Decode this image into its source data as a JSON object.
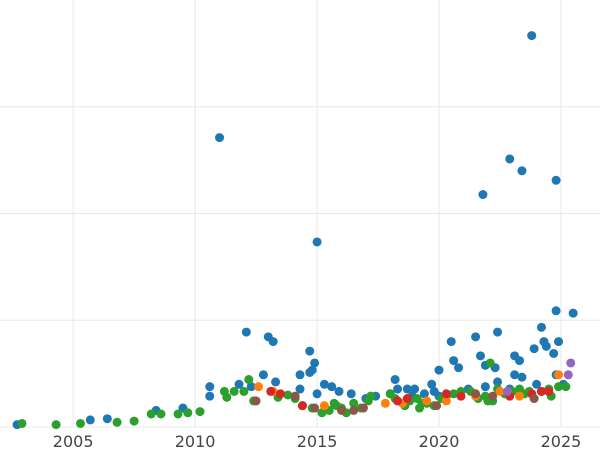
{
  "chart_data": {
    "type": "scatter",
    "title": "",
    "xlabel": "",
    "ylabel": "",
    "xlim": [
      2002,
      2026.6
    ],
    "ylim": [
      0,
      180
    ],
    "x_ticks": [
      2005,
      2010,
      2015,
      2020,
      2025
    ],
    "x_tick_labels": [
      "2005",
      "2010",
      "2015",
      "2020",
      "2025"
    ],
    "y_gridlines": [
      0,
      45,
      90,
      135
    ],
    "grid": true,
    "legend": "none",
    "series": [
      {
        "color": "#1f77b4",
        "points": [
          [
            2002.7,
            1
          ],
          [
            2005.7,
            3
          ],
          [
            2006.4,
            3.5
          ],
          [
            2008.4,
            7
          ],
          [
            2009.5,
            8
          ],
          [
            2010.6,
            13
          ],
          [
            2010.6,
            17
          ],
          [
            2011,
            122
          ],
          [
            2011.8,
            18
          ],
          [
            2012.1,
            40
          ],
          [
            2012.3,
            17
          ],
          [
            2012.8,
            22
          ],
          [
            2013,
            38
          ],
          [
            2013.2,
            36
          ],
          [
            2013.3,
            19
          ],
          [
            2014.3,
            16
          ],
          [
            2014.3,
            22
          ],
          [
            2014.7,
            32
          ],
          [
            2014.7,
            23
          ],
          [
            2014.8,
            24
          ],
          [
            2014.9,
            27
          ],
          [
            2015,
            78
          ],
          [
            2015,
            14
          ],
          [
            2015.3,
            18
          ],
          [
            2015.6,
            17
          ],
          [
            2015.9,
            15
          ],
          [
            2016.4,
            14
          ],
          [
            2017,
            12
          ],
          [
            2017.4,
            13
          ],
          [
            2018,
            14
          ],
          [
            2018.2,
            20
          ],
          [
            2018.3,
            16
          ],
          [
            2018.7,
            16
          ],
          [
            2018.9,
            13
          ],
          [
            2019,
            16
          ],
          [
            2019.4,
            14
          ],
          [
            2019.7,
            18
          ],
          [
            2019.8,
            15
          ],
          [
            2020,
            24
          ],
          [
            2020,
            13
          ],
          [
            2020.5,
            36
          ],
          [
            2020.6,
            28
          ],
          [
            2020.8,
            25
          ],
          [
            2021.2,
            16
          ],
          [
            2021.5,
            38
          ],
          [
            2021.7,
            30
          ],
          [
            2021.8,
            98
          ],
          [
            2021.9,
            26
          ],
          [
            2021.9,
            17
          ],
          [
            2022.3,
            25
          ],
          [
            2022.4,
            19
          ],
          [
            2022.4,
            40
          ],
          [
            2022.9,
            113
          ],
          [
            2022.9,
            16
          ],
          [
            2023.1,
            22
          ],
          [
            2023.1,
            30
          ],
          [
            2023.3,
            28
          ],
          [
            2023.4,
            108
          ],
          [
            2023.4,
            21
          ],
          [
            2023.9,
            33
          ],
          [
            2023.8,
            165
          ],
          [
            2024,
            18
          ],
          [
            2024.2,
            42
          ],
          [
            2024.3,
            36
          ],
          [
            2024.4,
            34
          ],
          [
            2024.7,
            31
          ],
          [
            2024.8,
            49
          ],
          [
            2024.8,
            22
          ],
          [
            2024.9,
            36
          ],
          [
            2024.8,
            104
          ],
          [
            2025.1,
            18
          ],
          [
            2025.5,
            48
          ]
        ]
      },
      {
        "color": "#2ca02c",
        "points": [
          [
            2002.9,
            1.5
          ],
          [
            2004.3,
            1
          ],
          [
            2005.3,
            1.5
          ],
          [
            2006.8,
            2
          ],
          [
            2007.5,
            2.5
          ],
          [
            2008.2,
            5.5
          ],
          [
            2008.6,
            5.5
          ],
          [
            2009.3,
            5.5
          ],
          [
            2009.7,
            6
          ],
          [
            2010.2,
            6.5
          ],
          [
            2011.2,
            15
          ],
          [
            2011.3,
            12.5
          ],
          [
            2011.6,
            15
          ],
          [
            2012,
            15
          ],
          [
            2012.2,
            20
          ],
          [
            2012.4,
            11
          ],
          [
            2013.4,
            12.5
          ],
          [
            2013.8,
            13.5
          ],
          [
            2014.1,
            12
          ],
          [
            2014.4,
            9
          ],
          [
            2014.8,
            8
          ],
          [
            2015.2,
            6
          ],
          [
            2015.5,
            7
          ],
          [
            2015.7,
            10
          ],
          [
            2015.8,
            9
          ],
          [
            2016,
            8
          ],
          [
            2016.2,
            6
          ],
          [
            2016.5,
            10
          ],
          [
            2016.8,
            8
          ],
          [
            2017.1,
            11
          ],
          [
            2017.2,
            13
          ],
          [
            2018,
            14
          ],
          [
            2018.2,
            12
          ],
          [
            2018.6,
            9
          ],
          [
            2018.8,
            11
          ],
          [
            2019.1,
            12
          ],
          [
            2019.2,
            8
          ],
          [
            2019.3,
            10
          ],
          [
            2019.5,
            10
          ],
          [
            2019.8,
            9
          ],
          [
            2020.1,
            12
          ],
          [
            2020.3,
            13
          ],
          [
            2020.6,
            14
          ],
          [
            2020.9,
            15
          ],
          [
            2021.3,
            15
          ],
          [
            2021.6,
            12
          ],
          [
            2021.9,
            13
          ],
          [
            2022,
            11
          ],
          [
            2022.2,
            11
          ],
          [
            2022.4,
            16
          ],
          [
            2022.7,
            14
          ],
          [
            2023,
            15
          ],
          [
            2023.3,
            16
          ],
          [
            2023.5,
            14
          ],
          [
            2023.7,
            15
          ],
          [
            2024.2,
            15
          ],
          [
            2024.5,
            16
          ],
          [
            2024.6,
            13
          ],
          [
            2024.9,
            17
          ],
          [
            2025.2,
            17
          ],
          [
            2022.1,
            27
          ]
        ]
      },
      {
        "color": "#ff7f0e",
        "points": [
          [
            2012.6,
            17
          ],
          [
            2013.2,
            15
          ],
          [
            2015.3,
            9
          ],
          [
            2017.8,
            10
          ],
          [
            2018.5,
            10
          ],
          [
            2019.5,
            11
          ],
          [
            2020.3,
            11
          ],
          [
            2021.5,
            13
          ],
          [
            2022.5,
            15
          ],
          [
            2023.3,
            13
          ],
          [
            2023.8,
            14
          ],
          [
            2024.9,
            22
          ]
        ]
      },
      {
        "color": "#d62728",
        "points": [
          [
            2013.1,
            15
          ],
          [
            2013.5,
            14
          ],
          [
            2014.4,
            9
          ],
          [
            2018.3,
            11
          ],
          [
            2018.7,
            12
          ],
          [
            2020.3,
            14
          ],
          [
            2020.9,
            13
          ],
          [
            2022.9,
            13
          ],
          [
            2023.8,
            14
          ],
          [
            2024.2,
            15
          ],
          [
            2024.5,
            15
          ]
        ]
      },
      {
        "color": "#8c564b",
        "points": [
          [
            2012.5,
            11
          ],
          [
            2014.1,
            13
          ],
          [
            2014.9,
            8
          ],
          [
            2016,
            7
          ],
          [
            2016.5,
            7
          ],
          [
            2016.9,
            8
          ],
          [
            2019.9,
            9
          ],
          [
            2021.5,
            14
          ],
          [
            2022.2,
            13
          ],
          [
            2023.9,
            12
          ]
        ]
      },
      {
        "color": "#9467bd",
        "points": [
          [
            2022.8,
            15
          ],
          [
            2025.3,
            22
          ],
          [
            2025.4,
            27
          ]
        ]
      }
    ]
  }
}
